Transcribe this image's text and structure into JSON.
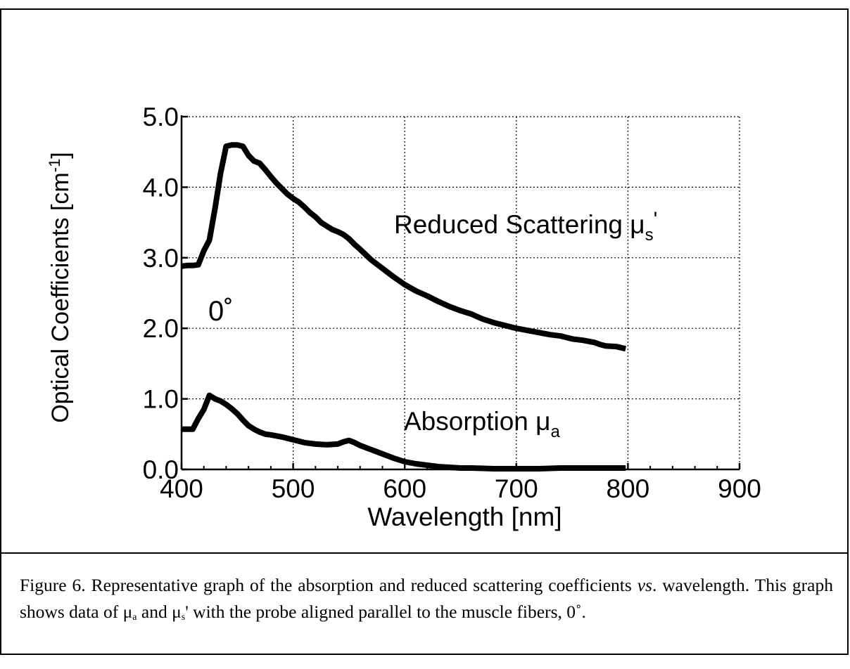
{
  "chart_data": {
    "type": "line",
    "xlabel": "Wavelength [nm]",
    "ylabel_base": "Optical Coefficients [cm",
    "ylabel_sup": "-1",
    "ylabel_tail": "]",
    "xlim": [
      400,
      900
    ],
    "ylim": [
      0,
      5
    ],
    "xticks": [
      "400",
      "500",
      "600",
      "700",
      "800",
      "900"
    ],
    "yticks": [
      "0.0",
      "1.0",
      "2.0",
      "3.0",
      "4.0",
      "5.0"
    ],
    "grid": true,
    "annotation": "0˚",
    "series": [
      {
        "name": "Reduced Scattering μs'",
        "label_main": "Reduced Scattering μ",
        "label_sub": "s",
        "label_tail": "'",
        "x": [
          400,
          405,
          410,
          415,
          420,
          425,
          430,
          435,
          440,
          445,
          450,
          455,
          460,
          465,
          470,
          475,
          480,
          485,
          490,
          495,
          500,
          505,
          510,
          515,
          520,
          525,
          530,
          535,
          540,
          545,
          550,
          555,
          560,
          570,
          580,
          590,
          600,
          610,
          620,
          630,
          640,
          650,
          660,
          670,
          680,
          690,
          700,
          710,
          720,
          730,
          740,
          750,
          760,
          770,
          775,
          780,
          790,
          798
        ],
        "y": [
          2.88,
          2.89,
          2.89,
          2.9,
          3.1,
          3.25,
          3.7,
          4.2,
          4.58,
          4.6,
          4.6,
          4.58,
          4.45,
          4.37,
          4.34,
          4.25,
          4.15,
          4.06,
          3.98,
          3.9,
          3.84,
          3.79,
          3.72,
          3.64,
          3.58,
          3.5,
          3.45,
          3.4,
          3.37,
          3.33,
          3.27,
          3.19,
          3.12,
          2.97,
          2.85,
          2.73,
          2.62,
          2.53,
          2.46,
          2.38,
          2.31,
          2.25,
          2.2,
          2.13,
          2.08,
          2.04,
          2.0,
          1.97,
          1.94,
          1.91,
          1.89,
          1.85,
          1.83,
          1.8,
          1.77,
          1.75,
          1.74,
          1.71
        ]
      },
      {
        "name": "Absorption μa",
        "label_main": "Absorption μ",
        "label_sub": "a",
        "label_tail": "",
        "x": [
          400,
          410,
          415,
          420,
          425,
          430,
          435,
          440,
          445,
          450,
          455,
          460,
          465,
          470,
          475,
          480,
          490,
          500,
          510,
          520,
          530,
          540,
          545,
          550,
          555,
          560,
          570,
          580,
          590,
          600,
          610,
          620,
          630,
          640,
          650,
          660,
          680,
          700,
          720,
          740,
          760,
          780,
          798
        ],
        "y": [
          0.57,
          0.57,
          0.72,
          0.85,
          1.05,
          1.0,
          0.97,
          0.92,
          0.86,
          0.79,
          0.7,
          0.62,
          0.57,
          0.53,
          0.5,
          0.49,
          0.46,
          0.42,
          0.38,
          0.36,
          0.35,
          0.36,
          0.39,
          0.41,
          0.38,
          0.34,
          0.28,
          0.22,
          0.16,
          0.11,
          0.08,
          0.06,
          0.04,
          0.03,
          0.02,
          0.02,
          0.01,
          0.01,
          0.01,
          0.02,
          0.02,
          0.02,
          0.02
        ]
      }
    ]
  },
  "caption": {
    "lead": "Figure 6.  Representative graph of the absorption and reduced scattering coefficients ",
    "vs": "vs",
    "p1": ". wavelength. This graph shows data of μ",
    "sub_a": "a",
    "p2": " and μ",
    "sub_s": "s",
    "p3": "' with the probe aligned parallel to the muscle fibers, 0˚."
  }
}
